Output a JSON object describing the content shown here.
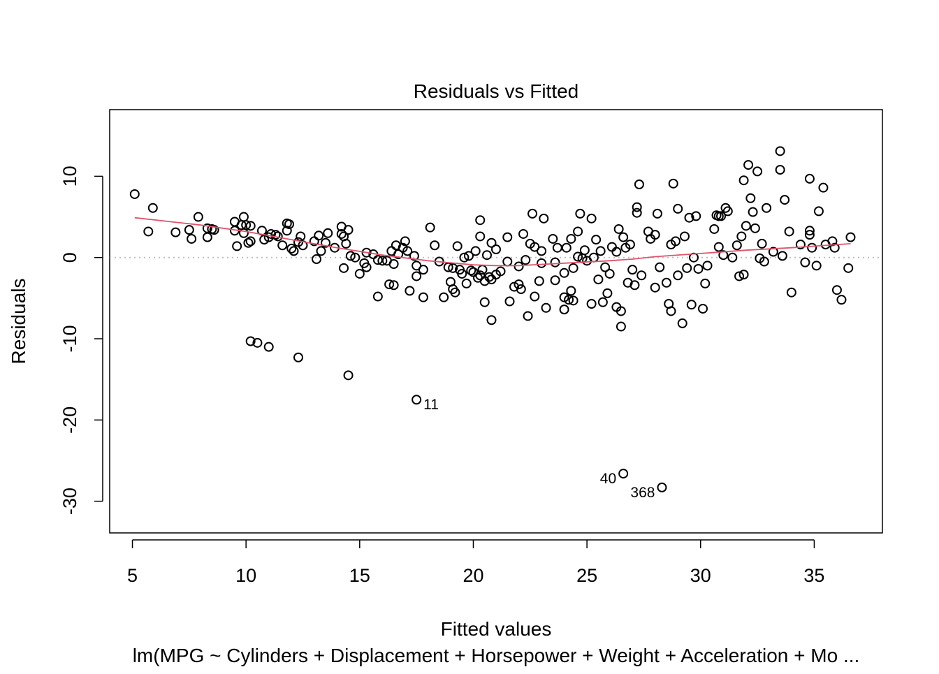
{
  "chart_data": {
    "type": "scatter",
    "title": "Residuals vs Fitted",
    "xlabel": "Fitted values",
    "ylabel": "Residuals",
    "subtitle": "lm(MPG ~ Cylinders + Displacement + Horsepower + Weight + Acceleration + Mo ...",
    "xlim": [
      4.0,
      38.0
    ],
    "ylim": [
      -33.9,
      18.2
    ],
    "x_ticks": [
      5,
      10,
      15,
      20,
      25,
      30,
      35
    ],
    "y_ticks": [
      -30,
      -20,
      -10,
      0,
      10
    ],
    "x_tick_labels": [
      "5",
      "10",
      "15",
      "20",
      "25",
      "30",
      "35"
    ],
    "y_tick_labels": [
      "-30",
      "-20",
      "-10",
      "0",
      "10"
    ],
    "reference_line": {
      "y": 0,
      "style": "dotted",
      "color": "#bebebe"
    },
    "smooth_color": "#DF536B",
    "smooth": [
      [
        5.1,
        4.9
      ],
      [
        8,
        4.0
      ],
      [
        10,
        3.2
      ],
      [
        12,
        2.2
      ],
      [
        14,
        1.2
      ],
      [
        16,
        0.3
      ],
      [
        18,
        -0.4
      ],
      [
        20,
        -0.9
      ],
      [
        21,
        -1.0
      ],
      [
        22,
        -1.0
      ],
      [
        24,
        -0.7
      ],
      [
        26,
        -0.4
      ],
      [
        27,
        -0.2
      ],
      [
        28,
        0.1
      ],
      [
        30,
        0.5
      ],
      [
        32,
        0.9
      ],
      [
        34,
        1.2
      ],
      [
        36.6,
        1.7
      ]
    ],
    "labeled_points": [
      {
        "label": "11",
        "x": 17.5,
        "y": -17.5,
        "side": "right"
      },
      {
        "label": "40",
        "x": 26.6,
        "y": -26.6,
        "side": "left"
      },
      {
        "label": "368",
        "x": 28.3,
        "y": -28.3,
        "side": "left"
      }
    ],
    "points": [
      [
        5.1,
        7.8
      ],
      [
        5.7,
        3.2
      ],
      [
        5.9,
        6.1
      ],
      [
        6.9,
        3.1
      ],
      [
        7.5,
        3.4
      ],
      [
        7.6,
        2.3
      ],
      [
        7.9,
        5.0
      ],
      [
        8.3,
        3.6
      ],
      [
        8.3,
        2.5
      ],
      [
        8.5,
        3.5
      ],
      [
        8.6,
        3.4
      ],
      [
        9.5,
        4.4
      ],
      [
        9.5,
        3.3
      ],
      [
        9.6,
        1.4
      ],
      [
        9.8,
        4.0
      ],
      [
        9.9,
        5.0
      ],
      [
        9.9,
        3.0
      ],
      [
        10.0,
        4.0
      ],
      [
        10.1,
        1.8
      ],
      [
        10.2,
        2.0
      ],
      [
        10.2,
        3.9
      ],
      [
        10.7,
        3.3
      ],
      [
        10.8,
        2.2
      ],
      [
        11.0,
        2.5
      ],
      [
        11.1,
        2.9
      ],
      [
        11.3,
        2.8
      ],
      [
        11.4,
        2.6
      ],
      [
        11.6,
        1.5
      ],
      [
        11.8,
        4.2
      ],
      [
        11.8,
        3.3
      ],
      [
        11.9,
        4.1
      ],
      [
        12.0,
        1.1
      ],
      [
        12.1,
        0.8
      ],
      [
        12.3,
        1.9
      ],
      [
        12.4,
        2.6
      ],
      [
        12.5,
        1.5
      ],
      [
        13.0,
        2.0
      ],
      [
        13.1,
        -0.2
      ],
      [
        13.2,
        2.7
      ],
      [
        13.3,
        0.8
      ],
      [
        13.5,
        1.8
      ],
      [
        13.6,
        3.0
      ],
      [
        13.9,
        1.2
      ],
      [
        14.2,
        2.9
      ],
      [
        14.2,
        3.8
      ],
      [
        14.3,
        2.6
      ],
      [
        14.3,
        -1.3
      ],
      [
        14.5,
        3.4
      ],
      [
        14.4,
        1.7
      ],
      [
        14.6,
        0.2
      ],
      [
        14.8,
        0.0
      ],
      [
        15.0,
        -2.0
      ],
      [
        15.2,
        -0.7
      ],
      [
        15.3,
        -1.2
      ],
      [
        15.3,
        0.6
      ],
      [
        15.6,
        0.4
      ],
      [
        15.8,
        -0.3
      ],
      [
        15.8,
        -4.8
      ],
      [
        16.0,
        -0.4
      ],
      [
        16.2,
        -0.4
      ],
      [
        16.3,
        -3.3
      ],
      [
        16.4,
        0.8
      ],
      [
        16.5,
        -3.4
      ],
      [
        16.5,
        -0.8
      ],
      [
        16.6,
        1.5
      ],
      [
        16.7,
        0.4
      ],
      [
        16.9,
        1.2
      ],
      [
        17.0,
        2.0
      ],
      [
        17.1,
        0.8
      ],
      [
        17.2,
        -4.1
      ],
      [
        17.4,
        0.2
      ],
      [
        17.5,
        -1.0
      ],
      [
        17.5,
        -2.3
      ],
      [
        17.8,
        -4.9
      ],
      [
        17.8,
        -1.5
      ],
      [
        18.1,
        3.7
      ],
      [
        18.3,
        1.5
      ],
      [
        18.5,
        -0.5
      ],
      [
        18.7,
        -4.9
      ],
      [
        18.9,
        -1.2
      ],
      [
        19.0,
        -3.0
      ],
      [
        19.1,
        -1.3
      ],
      [
        19.1,
        -3.9
      ],
      [
        19.2,
        -4.3
      ],
      [
        19.3,
        1.4
      ],
      [
        19.4,
        -1.5
      ],
      [
        19.5,
        -2.0
      ],
      [
        19.6,
        0.0
      ],
      [
        19.7,
        -3.2
      ],
      [
        19.8,
        0.2
      ],
      [
        19.9,
        -1.6
      ],
      [
        20.0,
        -1.8
      ],
      [
        20.1,
        0.8
      ],
      [
        20.2,
        -2.5
      ],
      [
        20.3,
        4.6
      ],
      [
        20.3,
        2.6
      ],
      [
        20.3,
        -2.2
      ],
      [
        20.4,
        -1.5
      ],
      [
        20.5,
        -2.9
      ],
      [
        20.5,
        -5.5
      ],
      [
        20.6,
        0.3
      ],
      [
        20.7,
        -2.4
      ],
      [
        20.8,
        -2.7
      ],
      [
        20.8,
        -7.7
      ],
      [
        20.8,
        1.8
      ],
      [
        21.0,
        -2.1
      ],
      [
        21.0,
        1.0
      ],
      [
        21.2,
        -1.7
      ],
      [
        21.5,
        -0.5
      ],
      [
        21.5,
        2.5
      ],
      [
        21.6,
        -5.4
      ],
      [
        21.8,
        -3.6
      ],
      [
        22.0,
        -1.1
      ],
      [
        22.0,
        -3.3
      ],
      [
        22.1,
        -3.9
      ],
      [
        22.2,
        2.9
      ],
      [
        22.3,
        -0.3
      ],
      [
        22.4,
        -7.2
      ],
      [
        22.5,
        1.7
      ],
      [
        22.6,
        5.4
      ],
      [
        22.7,
        -4.8
      ],
      [
        22.7,
        1.3
      ],
      [
        22.9,
        -2.9
      ],
      [
        23.0,
        -0.7
      ],
      [
        23.0,
        0.8
      ],
      [
        23.1,
        4.8
      ],
      [
        23.2,
        -6.2
      ],
      [
        23.5,
        2.3
      ],
      [
        23.6,
        -2.8
      ],
      [
        23.6,
        -0.6
      ],
      [
        23.7,
        1.2
      ],
      [
        24.0,
        -4.9
      ],
      [
        24.0,
        -1.9
      ],
      [
        24.0,
        -6.4
      ],
      [
        24.1,
        1.2
      ],
      [
        24.2,
        -5.2
      ],
      [
        24.3,
        2.3
      ],
      [
        24.3,
        -4.1
      ],
      [
        24.4,
        -1.3
      ],
      [
        24.4,
        -5.3
      ],
      [
        24.6,
        3.2
      ],
      [
        24.6,
        0.1
      ],
      [
        24.7,
        5.4
      ],
      [
        24.8,
        -0.1
      ],
      [
        24.9,
        0.9
      ],
      [
        25.0,
        -0.4
      ],
      [
        25.2,
        4.8
      ],
      [
        25.2,
        -5.7
      ],
      [
        25.3,
        0.0
      ],
      [
        25.4,
        2.2
      ],
      [
        25.5,
        -2.7
      ],
      [
        25.6,
        0.8
      ],
      [
        25.7,
        -5.5
      ],
      [
        25.8,
        -1.2
      ],
      [
        25.9,
        -4.4
      ],
      [
        26.0,
        -2.0
      ],
      [
        26.1,
        1.3
      ],
      [
        26.3,
        -6.1
      ],
      [
        26.3,
        0.7
      ],
      [
        26.4,
        3.5
      ],
      [
        26.5,
        -6.6
      ],
      [
        26.5,
        -8.5
      ],
      [
        26.6,
        2.5
      ],
      [
        26.7,
        1.2
      ],
      [
        26.8,
        -3.1
      ],
      [
        26.9,
        1.6
      ],
      [
        27.0,
        -1.5
      ],
      [
        27.1,
        -3.4
      ],
      [
        27.2,
        6.2
      ],
      [
        27.2,
        5.5
      ],
      [
        27.3,
        9.0
      ],
      [
        27.4,
        -2.2
      ],
      [
        27.7,
        3.2
      ],
      [
        27.8,
        2.3
      ],
      [
        28.0,
        -3.7
      ],
      [
        28.0,
        2.8
      ],
      [
        28.1,
        5.4
      ],
      [
        28.2,
        -1.2
      ],
      [
        28.5,
        -3.1
      ],
      [
        28.6,
        -5.7
      ],
      [
        28.7,
        1.6
      ],
      [
        28.7,
        -6.6
      ],
      [
        28.8,
        9.1
      ],
      [
        28.9,
        2.0
      ],
      [
        29.0,
        6.0
      ],
      [
        29.0,
        -2.2
      ],
      [
        29.2,
        -8.1
      ],
      [
        29.3,
        2.6
      ],
      [
        29.4,
        -1.3
      ],
      [
        29.5,
        4.9
      ],
      [
        29.6,
        -5.8
      ],
      [
        29.7,
        0.0
      ],
      [
        29.8,
        5.1
      ],
      [
        29.9,
        -1.4
      ],
      [
        30.1,
        -6.3
      ],
      [
        30.2,
        -3.2
      ],
      [
        30.3,
        -1.0
      ],
      [
        30.6,
        3.5
      ],
      [
        30.7,
        5.2
      ],
      [
        30.8,
        1.3
      ],
      [
        30.8,
        5.1
      ],
      [
        30.9,
        5.1
      ],
      [
        31.0,
        0.3
      ],
      [
        31.1,
        6.1
      ],
      [
        31.2,
        5.7
      ],
      [
        31.4,
        0.0
      ],
      [
        31.6,
        1.5
      ],
      [
        31.7,
        -2.3
      ],
      [
        31.8,
        2.6
      ],
      [
        31.9,
        -2.1
      ],
      [
        31.9,
        9.5
      ],
      [
        32.0,
        3.9
      ],
      [
        32.1,
        11.4
      ],
      [
        32.2,
        7.3
      ],
      [
        32.3,
        5.6
      ],
      [
        32.4,
        3.6
      ],
      [
        32.5,
        10.6
      ],
      [
        32.6,
        -0.1
      ],
      [
        32.7,
        1.7
      ],
      [
        32.8,
        -0.5
      ],
      [
        32.9,
        6.1
      ],
      [
        33.2,
        0.7
      ],
      [
        33.5,
        13.1
      ],
      [
        33.5,
        10.8
      ],
      [
        33.6,
        0.2
      ],
      [
        33.7,
        7.1
      ],
      [
        33.9,
        3.2
      ],
      [
        34.0,
        -4.3
      ],
      [
        34.4,
        1.6
      ],
      [
        34.6,
        -0.6
      ],
      [
        34.8,
        3.3
      ],
      [
        34.8,
        2.8
      ],
      [
        34.8,
        9.7
      ],
      [
        34.9,
        1.2
      ],
      [
        35.1,
        -1.0
      ],
      [
        35.2,
        5.7
      ],
      [
        35.4,
        8.6
      ],
      [
        35.5,
        1.6
      ],
      [
        35.8,
        2.0
      ],
      [
        35.9,
        1.2
      ],
      [
        36.0,
        -4.0
      ],
      [
        36.2,
        -5.2
      ],
      [
        36.5,
        -1.3
      ],
      [
        36.6,
        2.5
      ],
      [
        10.2,
        -10.3
      ],
      [
        10.5,
        -10.5
      ],
      [
        11.0,
        -11.0
      ],
      [
        12.3,
        -12.3
      ],
      [
        14.5,
        -14.5
      ],
      [
        17.5,
        -17.5
      ],
      [
        26.6,
        -26.6
      ],
      [
        28.3,
        -28.3
      ]
    ]
  }
}
